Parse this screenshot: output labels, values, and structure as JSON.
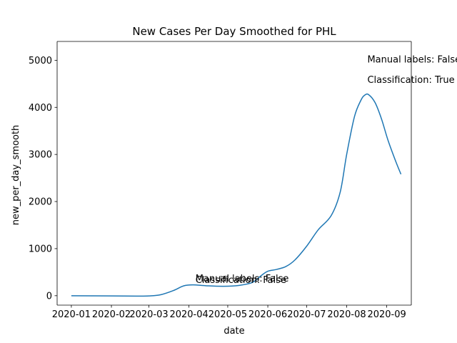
{
  "chart_data": {
    "type": "line",
    "title": "New Cases Per Day Smoothed for PHL",
    "xlabel": "date",
    "ylabel": "new_per_day_smooth",
    "xlim": [
      "2019-12-21",
      "2020-09-20"
    ],
    "ylim": [
      -200,
      5400
    ],
    "x_ticks": [
      "2020-01",
      "2020-02",
      "2020-03",
      "2020-04",
      "2020-05",
      "2020-06",
      "2020-07",
      "2020-08",
      "2020-09"
    ],
    "x_tick_dates": [
      "2020-01-01",
      "2020-02-01",
      "2020-03-01",
      "2020-04-01",
      "2020-05-01",
      "2020-06-01",
      "2020-07-01",
      "2020-08-01",
      "2020-09-01"
    ],
    "y_ticks": [
      0,
      1000,
      2000,
      3000,
      4000,
      5000
    ],
    "grid": false,
    "line_color": "#1f77b4",
    "series": [
      {
        "x": [
          "2020-01-01",
          "2020-02-01",
          "2020-02-20",
          "2020-03-01",
          "2020-03-10",
          "2020-03-20",
          "2020-03-28",
          "2020-04-04",
          "2020-04-15",
          "2020-04-28",
          "2020-05-10",
          "2020-05-20",
          "2020-05-27",
          "2020-06-01",
          "2020-06-08",
          "2020-06-15",
          "2020-06-22",
          "2020-07-01",
          "2020-07-10",
          "2020-07-20",
          "2020-07-27",
          "2020-08-01",
          "2020-08-07",
          "2020-08-12",
          "2020-08-15",
          "2020-08-18",
          "2020-08-23",
          "2020-08-28",
          "2020-09-02",
          "2020-09-08",
          "2020-09-12"
        ],
        "y": [
          0,
          -5,
          -8,
          -5,
          20,
          110,
          210,
          230,
          210,
          200,
          220,
          280,
          430,
          520,
          560,
          620,
          760,
          1050,
          1400,
          1700,
          2200,
          3000,
          3800,
          4150,
          4260,
          4270,
          4100,
          3750,
          3300,
          2850,
          2580
        ]
      }
    ],
    "annotations": [
      {
        "text": "Manual labels: False",
        "x": "2020-04-06",
        "y": 300
      },
      {
        "text": "Classification: False",
        "x": "2020-04-06",
        "y": 270
      },
      {
        "text": "Manual labels: False",
        "x": "2020-08-17",
        "y": 4950
      },
      {
        "text": "Classification: True",
        "x": "2020-08-17",
        "y": 4520
      }
    ]
  }
}
